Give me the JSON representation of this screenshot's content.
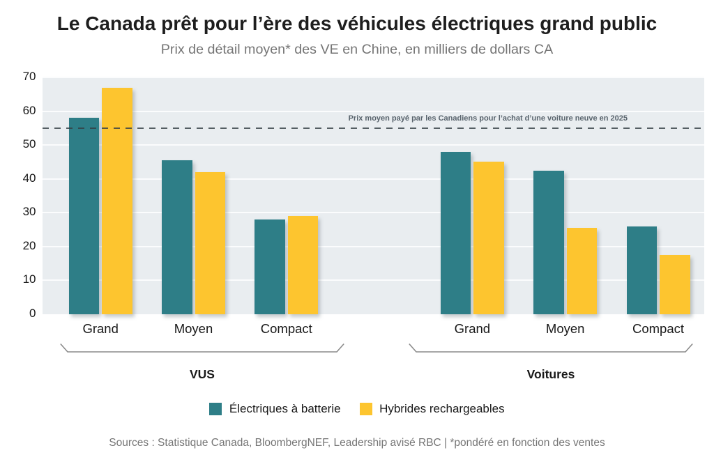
{
  "title": "Le Canada prêt pour l’ère des véhicules électriques grand public",
  "subtitle": "Prix de détail moyen* des VE en Chine, en milliers de dollars CA",
  "source": "Sources : Statistique Canada, BloombergNEF, Leadership avisé RBC | *pondéré en fonction des ventes",
  "colors": {
    "battery_teal": "#2E7E87",
    "hybrid_yellow": "#FDC52F",
    "plot_background": "#E9EDF0",
    "gridline": "#FBFCFD",
    "reference_line": "#3F4A51",
    "reference_label": "#59646D",
    "bracket": "#8A8A8A",
    "text_dark": "#191919",
    "text_muted": "#737373"
  },
  "chart_data": {
    "type": "bar",
    "title": "Le Canada prêt pour l’ère des véhicules électriques grand public",
    "subtitle": "Prix de détail moyen* des VE en Chine, en milliers de dollars CA",
    "ylabel": "",
    "xlabel": "",
    "ylim": [
      0,
      70
    ],
    "ytick_step": 10,
    "ytick_labels": [
      "0",
      "10",
      "20",
      "30",
      "40",
      "50",
      "60",
      "70"
    ],
    "grid": true,
    "legend_position": "bottom",
    "groups": [
      {
        "label": "VUS",
        "categories": [
          "Grand",
          "Moyen",
          "Compact"
        ]
      },
      {
        "label": "Voitures",
        "categories": [
          "Grand",
          "Moyen",
          "Compact"
        ]
      }
    ],
    "series": [
      {
        "name": "Électriques à batterie",
        "color": "#2E7E87",
        "values": [
          [
            58,
            45.5,
            28
          ],
          [
            48,
            42.5,
            26
          ]
        ]
      },
      {
        "name": "Hybrides rechargeables",
        "color": "#FDC52F",
        "values": [
          [
            67,
            42,
            29
          ],
          [
            45,
            25.5,
            17.5
          ]
        ]
      }
    ],
    "reference_line": {
      "value": 55,
      "label": "Prix moyen payé par les Canadiens pour l’achat d’une voiture neuve en 2025",
      "style": "dashed"
    }
  }
}
